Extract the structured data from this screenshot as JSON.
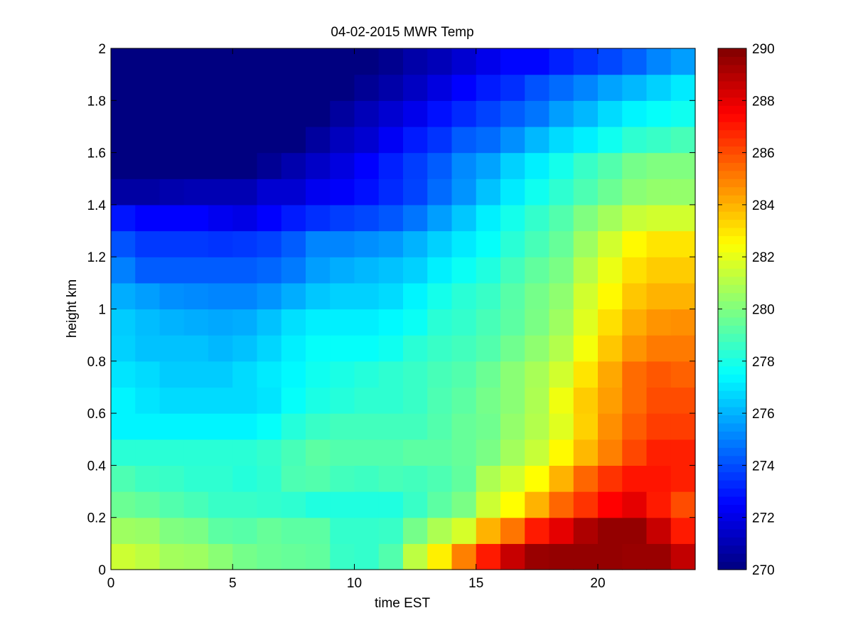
{
  "chart_data": {
    "type": "heatmap",
    "title": "04-02-2015 MWR Temp",
    "xlabel": "time EST",
    "ylabel": "height km",
    "xlim": [
      0,
      24
    ],
    "ylim": [
      0,
      2
    ],
    "xticks": [
      "0",
      "5",
      "10",
      "15",
      "20"
    ],
    "yticks": [
      "0",
      "0.2",
      "0.4",
      "0.6",
      "0.8",
      "1",
      "1.2",
      "1.4",
      "1.6",
      "1.8",
      "2"
    ],
    "colorbar": {
      "range": [
        270,
        290
      ],
      "ticks": [
        "270",
        "272",
        "274",
        "276",
        "278",
        "280",
        "282",
        "284",
        "286",
        "288",
        "290"
      ],
      "colormap": "jet"
    },
    "x_hours": [
      0,
      1,
      2,
      3,
      4,
      5,
      6,
      7,
      8,
      9,
      10,
      11,
      12,
      13,
      14,
      15,
      16,
      17,
      18,
      19,
      20,
      21,
      22,
      23
    ],
    "y_heights_km": [
      0,
      0.1,
      0.2,
      0.3,
      0.4,
      0.5,
      0.6,
      0.7,
      0.8,
      0.9,
      1.0,
      1.1,
      1.2,
      1.3,
      1.4,
      1.5,
      1.6,
      1.7,
      1.8,
      1.9
    ],
    "z_temperature_K": [
      [
        281.5,
        281.2,
        280.7,
        280.6,
        280.2,
        279.8,
        279.6,
        279.5,
        279.4,
        278.6,
        278.5,
        279.1,
        281.2,
        282.8,
        285.0,
        287.0,
        288.6,
        289.5,
        289.6,
        289.6,
        289.6,
        289.5,
        289.5,
        288.7
      ],
      [
        280.6,
        280.5,
        280.0,
        279.9,
        279.3,
        279.2,
        279.5,
        279.3,
        279.3,
        278.5,
        278.5,
        278.6,
        279.8,
        280.9,
        281.7,
        284.0,
        285.2,
        287.0,
        288.0,
        289.1,
        289.6,
        289.6,
        288.6,
        287.0
      ],
      [
        279.6,
        279.4,
        279.1,
        278.9,
        278.6,
        278.6,
        278.5,
        278.4,
        278.1,
        278.1,
        278.1,
        278.1,
        278.6,
        279.3,
        279.9,
        281.5,
        282.5,
        284.0,
        285.5,
        286.5,
        287.5,
        288.0,
        287.0,
        286.0
      ],
      [
        279.0,
        278.7,
        278.6,
        278.4,
        278.4,
        278.2,
        278.4,
        279.0,
        279.1,
        278.8,
        278.7,
        278.9,
        278.8,
        279.0,
        279.4,
        280.9,
        281.6,
        282.5,
        284.0,
        285.5,
        286.5,
        287.1,
        287.1,
        286.9
      ],
      [
        278.3,
        278.3,
        278.3,
        278.3,
        278.3,
        278.3,
        278.5,
        278.9,
        279.3,
        279.1,
        279.1,
        279.1,
        279.3,
        279.3,
        279.5,
        279.9,
        280.7,
        281.4,
        282.6,
        283.9,
        285.0,
        286.1,
        286.9,
        286.9
      ],
      [
        277.3,
        277.3,
        277.3,
        277.3,
        277.3,
        277.3,
        277.6,
        278.2,
        278.6,
        278.8,
        278.8,
        278.8,
        278.8,
        279.1,
        279.5,
        279.7,
        280.4,
        281.0,
        281.9,
        283.4,
        284.7,
        285.7,
        286.3,
        286.3
      ],
      [
        277.3,
        277.0,
        276.8,
        276.8,
        276.8,
        276.8,
        277.0,
        277.6,
        278.0,
        278.2,
        278.4,
        278.4,
        278.6,
        279.0,
        279.3,
        279.8,
        280.2,
        280.9,
        282.2,
        283.5,
        284.4,
        285.4,
        286.0,
        286.0
      ],
      [
        277.0,
        276.8,
        276.5,
        276.5,
        276.5,
        276.8,
        277.1,
        277.4,
        277.8,
        278.0,
        278.2,
        278.4,
        278.6,
        278.9,
        279.1,
        279.6,
        280.2,
        280.8,
        281.6,
        283.0,
        284.2,
        285.4,
        285.8,
        285.6
      ],
      [
        276.6,
        276.3,
        276.3,
        276.3,
        276.1,
        276.3,
        276.7,
        277.2,
        277.6,
        277.6,
        277.6,
        277.8,
        278.3,
        278.6,
        278.8,
        279.1,
        279.7,
        280.3,
        281.0,
        282.3,
        283.6,
        284.6,
        285.1,
        285.1
      ],
      [
        276.5,
        276.2,
        276.0,
        275.9,
        275.8,
        275.9,
        276.3,
        276.9,
        277.2,
        277.2,
        277.2,
        277.4,
        277.7,
        278.3,
        278.5,
        278.9,
        279.3,
        279.9,
        280.6,
        281.9,
        283.1,
        284.1,
        284.6,
        284.7
      ],
      [
        275.9,
        275.6,
        275.3,
        275.2,
        275.1,
        275.1,
        275.4,
        275.9,
        276.4,
        276.6,
        276.6,
        276.8,
        277.3,
        277.9,
        278.3,
        278.6,
        279.2,
        279.8,
        280.3,
        281.6,
        282.6,
        283.6,
        284.0,
        284.0
      ],
      [
        275.0,
        274.3,
        274.3,
        274.3,
        274.3,
        274.3,
        274.5,
        274.9,
        275.6,
        275.9,
        276.1,
        276.3,
        276.6,
        277.2,
        277.7,
        278.1,
        278.8,
        279.4,
        279.9,
        281.1,
        282.1,
        283.1,
        283.5,
        283.5
      ],
      [
        274.1,
        273.6,
        273.6,
        273.6,
        273.5,
        273.6,
        273.8,
        274.3,
        275.1,
        275.1,
        275.3,
        275.5,
        276.0,
        276.6,
        277.1,
        277.6,
        278.3,
        278.9,
        279.5,
        280.6,
        281.6,
        282.6,
        283.0,
        283.0
      ],
      [
        272.9,
        272.5,
        272.5,
        272.5,
        272.2,
        272.0,
        272.5,
        273.0,
        273.4,
        273.7,
        273.9,
        274.2,
        274.8,
        275.6,
        276.4,
        277.2,
        277.9,
        278.5,
        279.1,
        280.0,
        280.7,
        281.4,
        281.6,
        281.6
      ],
      [
        270.7,
        270.7,
        270.9,
        271.0,
        271.0,
        271.0,
        271.6,
        271.6,
        272.2,
        272.4,
        272.8,
        273.3,
        273.8,
        274.6,
        275.4,
        276.3,
        277.1,
        277.8,
        278.4,
        279.0,
        279.6,
        280.2,
        280.4,
        280.4
      ],
      [
        270.0,
        270.0,
        270.0,
        270.0,
        270.0,
        270.0,
        270.4,
        270.9,
        271.4,
        271.9,
        272.5,
        273.1,
        273.7,
        274.3,
        275.2,
        275.7,
        276.6,
        277.2,
        277.9,
        278.6,
        279.1,
        279.8,
        280.0,
        280.0
      ],
      [
        270.0,
        270.0,
        270.0,
        270.0,
        270.0,
        270.0,
        270.0,
        270.0,
        270.6,
        271.2,
        271.6,
        272.3,
        273.0,
        273.5,
        274.3,
        274.6,
        275.3,
        276.1,
        276.8,
        277.2,
        277.8,
        278.4,
        278.6,
        278.9
      ],
      [
        270.0,
        270.0,
        270.0,
        270.0,
        270.0,
        270.0,
        270.0,
        270.0,
        270.0,
        270.6,
        271.1,
        271.6,
        272.1,
        272.8,
        273.3,
        273.8,
        274.3,
        274.8,
        275.6,
        276.1,
        276.8,
        277.3,
        277.6,
        277.8
      ],
      [
        270.0,
        270.0,
        270.0,
        270.0,
        270.0,
        270.0,
        270.0,
        270.0,
        270.0,
        270.0,
        270.4,
        270.8,
        271.3,
        271.9,
        272.5,
        273.0,
        273.4,
        274.1,
        274.6,
        275.1,
        275.7,
        276.1,
        276.6,
        277.1
      ],
      [
        270.0,
        270.0,
        270.0,
        270.0,
        270.0,
        270.0,
        270.0,
        270.0,
        270.0,
        270.0,
        270.0,
        270.3,
        270.8,
        271.1,
        271.6,
        272.1,
        272.6,
        272.6,
        273.1,
        273.5,
        273.9,
        274.4,
        275.1,
        275.6
      ]
    ]
  }
}
